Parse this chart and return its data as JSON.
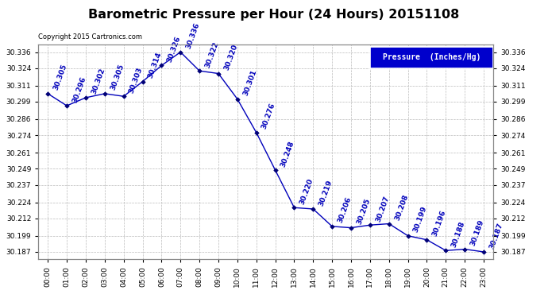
{
  "title": "Barometric Pressure per Hour (24 Hours) 20151108",
  "copyright": "Copyright 2015 Cartronics.com",
  "legend_label": "Pressure  (Inches/Hg)",
  "hours": [
    0,
    1,
    2,
    3,
    4,
    5,
    6,
    7,
    8,
    9,
    10,
    11,
    12,
    13,
    14,
    15,
    16,
    17,
    18,
    19,
    20,
    21,
    22,
    23
  ],
  "values": [
    30.305,
    30.296,
    30.302,
    30.305,
    30.303,
    30.314,
    30.326,
    30.336,
    30.322,
    30.32,
    30.301,
    30.276,
    30.248,
    30.22,
    30.219,
    30.206,
    30.205,
    30.207,
    30.208,
    30.199,
    30.196,
    30.188,
    30.189,
    30.187
  ],
  "x_labels": [
    "00:00",
    "01:00",
    "02:00",
    "03:00",
    "04:00",
    "05:00",
    "06:00",
    "07:00",
    "08:00",
    "09:00",
    "10:00",
    "11:00",
    "12:00",
    "13:00",
    "14:00",
    "15:00",
    "16:00",
    "17:00",
    "18:00",
    "19:00",
    "20:00",
    "21:00",
    "22:00",
    "23:00"
  ],
  "y_ticks": [
    30.187,
    30.199,
    30.212,
    30.224,
    30.237,
    30.249,
    30.261,
    30.274,
    30.286,
    30.299,
    30.311,
    30.324,
    30.336
  ],
  "ymin": 30.1815,
  "ymax": 30.3415,
  "line_color": "#0000bb",
  "marker_color": "#000077",
  "bg_color": "#ffffff",
  "grid_color": "#bbbbbb",
  "title_fontsize": 11.5,
  "annotation_fontsize": 6.5,
  "legend_bg": "#0000cc",
  "legend_text_color": "#ffffff"
}
